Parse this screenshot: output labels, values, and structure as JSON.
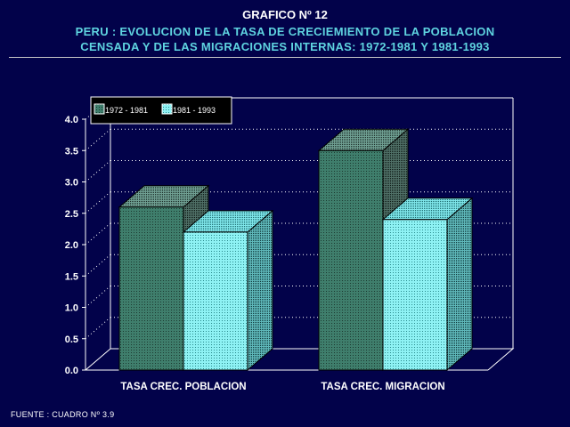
{
  "header": {
    "title": "GRAFICO Nº 12",
    "subtitle_line1": "PERU : EVOLUCION DE LA TASA DE CRECIEMIENTO DE LA POBLACION",
    "subtitle_line2": "CENSADA Y DE LAS MIGRACIONES INTERNAS: 1972-1981 Y 1981-1993"
  },
  "footer": {
    "source": "FUENTE : CUADRO Nº 3.9"
  },
  "colors": {
    "background": "#02024a",
    "series1_front": "#3f7e6c",
    "series2_front": "#8ef2f4",
    "axis": "#ffffff",
    "grid": "#ffffff"
  },
  "chart_data": {
    "type": "bar",
    "categories": [
      "TASA CREC. POBLACION",
      "TASA CREC. MIGRACION"
    ],
    "series": [
      {
        "name": "1972 - 1981",
        "values": [
          2.6,
          3.5
        ]
      },
      {
        "name": "1981 - 1993",
        "values": [
          2.2,
          2.4
        ]
      }
    ],
    "ylim": [
      0,
      4.0
    ],
    "yticks": [
      "0.0",
      "0.5",
      "1.0",
      "1.5",
      "2.0",
      "2.5",
      "3.0",
      "3.5",
      "4.0"
    ],
    "grid": true,
    "legend_position": "top-left",
    "style": "3d"
  }
}
